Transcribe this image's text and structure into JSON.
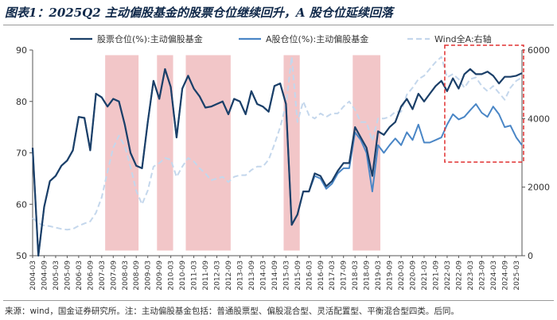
{
  "title": "图表1：2025Q2 主动偏股基金的股票仓位继续回升，A 股仓位延续回落",
  "source": "来源：wind，国金证券研究所。注：主动偏股基金包括：普通股票型、偏股混合型、灵活配置型、平衡混合型四类。后同。",
  "colors": {
    "series1": "#1b3f68",
    "series2": "#4a86c6",
    "series3": "#c4d7ec",
    "shade": "#f2c6c8",
    "highlight": "#e03030",
    "axis": "#555555"
  },
  "chart_data": {
    "type": "line",
    "x": [
      "2004-03",
      "2004-06",
      "2004-09",
      "2004-12",
      "2005-03",
      "2005-06",
      "2005-09",
      "2005-12",
      "2006-03",
      "2006-06",
      "2006-09",
      "2006-12",
      "2007-03",
      "2007-06",
      "2007-09",
      "2007-12",
      "2008-03",
      "2008-06",
      "2008-09",
      "2008-12",
      "2009-03",
      "2009-06",
      "2009-09",
      "2009-12",
      "2010-03",
      "2010-06",
      "2010-09",
      "2010-12",
      "2011-03",
      "2011-06",
      "2011-09",
      "2011-12",
      "2012-03",
      "2012-06",
      "2012-09",
      "2012-12",
      "2013-03",
      "2013-06",
      "2013-09",
      "2013-12",
      "2014-03",
      "2014-06",
      "2014-09",
      "2014-12",
      "2015-03",
      "2015-06",
      "2015-09",
      "2015-12",
      "2016-03",
      "2016-06",
      "2016-09",
      "2016-12",
      "2017-03",
      "2017-06",
      "2017-09",
      "2017-12",
      "2018-03",
      "2018-06",
      "2018-09",
      "2018-12",
      "2019-03",
      "2019-06",
      "2019-09",
      "2019-12",
      "2020-03",
      "2020-06",
      "2020-09",
      "2020-12",
      "2021-03",
      "2021-06",
      "2021-09",
      "2021-12",
      "2022-03",
      "2022-06",
      "2022-09",
      "2022-12",
      "2023-03",
      "2023-06",
      "2023-09",
      "2023-12",
      "2024-03",
      "2024-06",
      "2024-09",
      "2024-12",
      "2025-03",
      "2025-06"
    ],
    "x_tick_labels": [
      "2004-03",
      "2004-09",
      "2005-03",
      "2005-09",
      "2006-03",
      "2006-09",
      "2007-03",
      "2007-09",
      "2008-03",
      "2008-09",
      "2009-03",
      "2009-09",
      "2010-03",
      "2010-09",
      "2011-03",
      "2011-09",
      "2012-03",
      "2012-09",
      "2013-03",
      "2013-09",
      "2014-03",
      "2014-09",
      "2015-03",
      "2015-09",
      "2016-03",
      "2016-09",
      "2017-03",
      "2017-09",
      "2018-03",
      "2018-09",
      "2019-03",
      "2019-09",
      "2020-03",
      "2020-09",
      "2021-03",
      "2021-09",
      "2022-03",
      "2022-09",
      "2023-03",
      "2023-09",
      "2024-03",
      "2024-09",
      "2025-03"
    ],
    "series": [
      {
        "name": "股票仓位(%):主动偏股基金",
        "axis": "left",
        "values": [
          71,
          50,
          59.5,
          64.5,
          65.5,
          67.5,
          68.5,
          70.5,
          77,
          76.8,
          70.5,
          81.5,
          80.8,
          79,
          80.5,
          80,
          75.5,
          70,
          67.5,
          67,
          76,
          84,
          80.5,
          86.3,
          82.8,
          73,
          82.5,
          85,
          82.5,
          81,
          78.8,
          79,
          79.5,
          80,
          77.5,
          80.5,
          80,
          77.5,
          82,
          79.5,
          79,
          78,
          83,
          83.5,
          79.5,
          56,
          58,
          62.5,
          62.5,
          66,
          65.5,
          63.5,
          64.5,
          66.5,
          68,
          68,
          75,
          73,
          71,
          65.5,
          74.2,
          73.5,
          75,
          76,
          79,
          80.5,
          78.5,
          81.5,
          80,
          81.5,
          83,
          84,
          82,
          84.5,
          82.5,
          85.3,
          86.3,
          85.3,
          85.3,
          85.8,
          85,
          83.5,
          84.8,
          84.8,
          85,
          85.5
        ]
      },
      {
        "name": "A股仓位(%):主动偏股基金",
        "axis": "left",
        "values": [
          71,
          50,
          59.5,
          64.5,
          65.5,
          67.5,
          68.5,
          70.5,
          77,
          76.8,
          70.5,
          81.5,
          80.8,
          79,
          80.5,
          80,
          75.5,
          70,
          67.5,
          67,
          76,
          84,
          80.5,
          86.3,
          82.8,
          73,
          82.5,
          85,
          82.5,
          81,
          78.8,
          79,
          79.5,
          80,
          77.5,
          80.5,
          80,
          77.5,
          82,
          79.5,
          79,
          78,
          83,
          83.5,
          79.5,
          56,
          58,
          62.5,
          62.5,
          65.5,
          65,
          63,
          64,
          66,
          67,
          67,
          74,
          72.5,
          70,
          62.5,
          71.5,
          70,
          71.5,
          72.8,
          71.5,
          74,
          72.5,
          75.5,
          72,
          72,
          72.5,
          73,
          75.5,
          77.5,
          76.5,
          77,
          78.3,
          79.5,
          77.8,
          77,
          79,
          77.5,
          75,
          75.3,
          73,
          71.5
        ]
      },
      {
        "name": "Wind全A:右轴",
        "axis": "right",
        "values": [
          1100,
          950,
          880,
          860,
          820,
          780,
          760,
          780,
          870,
          940,
          1000,
          1250,
          1700,
          2450,
          3150,
          3500,
          3200,
          2600,
          1900,
          1500,
          1900,
          2600,
          2700,
          2850,
          2800,
          2300,
          2600,
          2850,
          2750,
          2550,
          2400,
          2200,
          2250,
          2300,
          2150,
          2300,
          2350,
          2350,
          2500,
          2600,
          2600,
          2800,
          3250,
          3750,
          4400,
          5800,
          3900,
          4500,
          4100,
          4000,
          4150,
          4050,
          4150,
          4150,
          4350,
          4500,
          4250,
          3900,
          3900,
          3350,
          4000,
          4000,
          4050,
          4200,
          4200,
          4700,
          4900,
          5150,
          5250,
          5450,
          5650,
          5800,
          5200,
          5300,
          5150,
          4900,
          5150,
          5200,
          4950,
          4800,
          4950,
          4750,
          4550,
          4900,
          5100,
          5200
        ]
      }
    ],
    "shaded_ranges": [
      [
        "2007-06",
        "2008-09"
      ],
      [
        "2009-09",
        "2010-03"
      ],
      [
        "2010-12",
        "2012-09"
      ],
      [
        "2015-03",
        "2015-09"
      ],
      [
        "2018-03",
        "2019-03"
      ]
    ],
    "highlight_range": [
      "2022-03",
      "2025-06"
    ],
    "y_left": {
      "min": 50,
      "max": 90,
      "ticks": [
        50,
        60,
        70,
        80,
        90
      ],
      "label": ""
    },
    "y_right": {
      "min": 0,
      "max": 6000,
      "ticks": [
        0,
        2000,
        4000,
        6000
      ],
      "label": ""
    },
    "xlabel": "",
    "legend_position": "top",
    "grid": false
  }
}
